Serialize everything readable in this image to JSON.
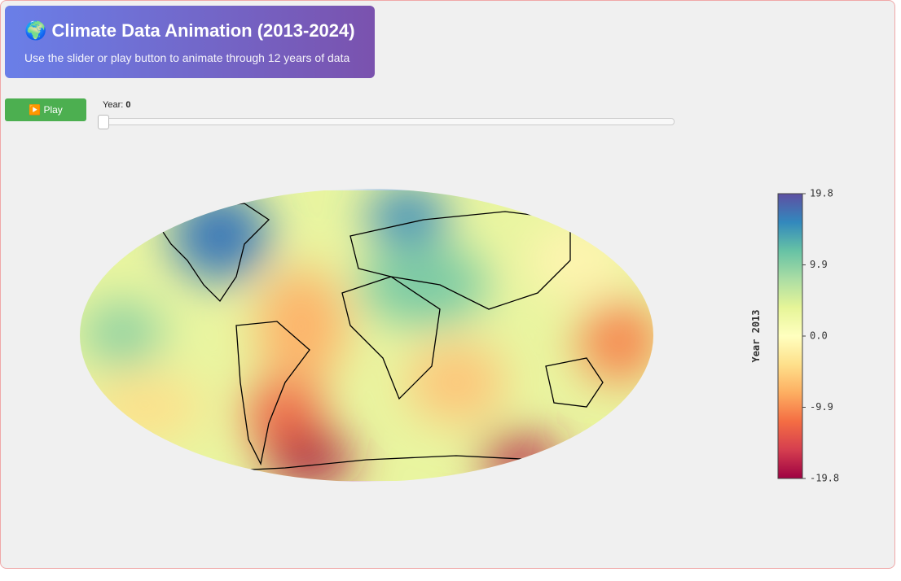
{
  "header": {
    "title": "🌍 Climate Data Animation (2013-2024)",
    "subtitle": "Use the slider or play button to animate through 12 years of data"
  },
  "controls": {
    "play_button": "▶️ Play",
    "slider_label": "Year:",
    "slider_value": 0
  },
  "chart_data": {
    "type": "map",
    "colorbar_title": "Year 2013",
    "clim": [
      -19.8,
      19.8
    ],
    "cticks": [
      19.8,
      9.9,
      {
        "value": 0,
        "label": "0.0"
      },
      -9.9,
      -19.8
    ],
    "colors": [
      "#5e4fa2",
      "#3288bd",
      "#66c2a5",
      "#abdda4",
      "#e6f598",
      "#ffffbf",
      "#fee08b",
      "#fdae61",
      "#f46d43",
      "#d53e4f",
      "#9e0142"
    ]
  }
}
